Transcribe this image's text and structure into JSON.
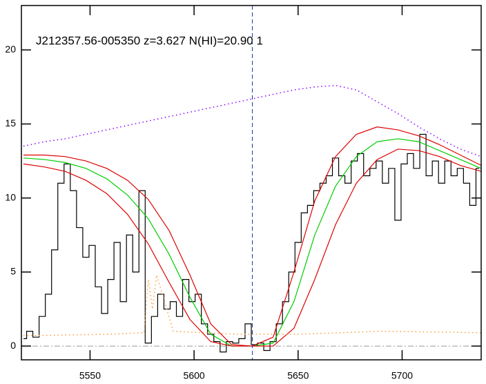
{
  "chart_data": {
    "type": "line",
    "title": "J212357.56-005350 z=3.627 N(HI)=20.90 1",
    "xlim": [
      5517,
      5738
    ],
    "ylim": [
      -0.93,
      23
    ],
    "xticks": [
      5550,
      5600,
      5650,
      5700
    ],
    "yticks": [
      0,
      5,
      10,
      15,
      20
    ],
    "zero_line": true,
    "vline": 5628,
    "series": [
      {
        "color": "#000000",
        "style": "step",
        "x": [
          5518,
          5521,
          5524,
          5527,
          5530,
          5533,
          5536,
          5539,
          5542,
          5545,
          5548,
          5551,
          5554,
          5557,
          5560,
          5563,
          5566,
          5569,
          5572,
          5575,
          5578,
          5581,
          5584,
          5587,
          5590,
          5593,
          5596,
          5599,
          5602,
          5605,
          5608,
          5611,
          5614,
          5617,
          5620,
          5623,
          5626,
          5629,
          5632,
          5635,
          5638,
          5641,
          5644,
          5647,
          5650,
          5653,
          5656,
          5659,
          5662,
          5665,
          5668,
          5671,
          5674,
          5677,
          5680,
          5683,
          5686,
          5689,
          5692,
          5695,
          5698,
          5701,
          5704,
          5707,
          5710,
          5713,
          5716,
          5719,
          5722,
          5725,
          5728,
          5731,
          5734,
          5737
        ],
        "values": [
          0.5,
          1.0,
          0.6,
          2.0,
          3.5,
          6.5,
          11.0,
          12.3,
          10.5,
          8.0,
          6.0,
          6.8,
          4.0,
          2.2,
          4.5,
          7.0,
          3.0,
          7.5,
          5.0,
          10.5,
          0.2,
          2.0,
          3.5,
          2.5,
          3.0,
          2.0,
          4.5,
          3.0,
          3.5,
          1.5,
          0.8,
          0.3,
          -0.4,
          0.3,
          0.2,
          0.5,
          1.5,
          0.1,
          0.2,
          -0.3,
          0.3,
          1.5,
          3.0,
          5.0,
          7.0,
          9.0,
          9.5,
          10.5,
          11.0,
          11.5,
          12.7,
          11.5,
          11.0,
          12.5,
          13.0,
          11.5,
          12.0,
          12.5,
          11.0,
          12.0,
          8.5,
          12.3,
          13.0,
          12.0,
          14.3,
          11.5,
          12.5,
          11.0,
          12.5,
          11.5,
          12.0,
          11.0,
          9.5,
          12.0
        ]
      },
      {
        "color": "#00cc00",
        "style": "line",
        "x": [
          5518,
          5528,
          5538,
          5548,
          5558,
          5568,
          5578,
          5588,
          5598,
          5608,
          5618,
          5628,
          5638,
          5648,
          5658,
          5668,
          5678,
          5688,
          5698,
          5708,
          5718,
          5728,
          5738
        ],
        "values": [
          12.7,
          12.6,
          12.4,
          12.0,
          11.3,
          10.2,
          8.6,
          6.2,
          3.3,
          0.8,
          0.0,
          0.0,
          0.2,
          3.0,
          7.5,
          10.8,
          12.8,
          13.8,
          14.0,
          13.8,
          13.2,
          12.6,
          12.0
        ]
      },
      {
        "color": "#dd0000",
        "style": "line",
        "x": [
          5518,
          5528,
          5538,
          5548,
          5558,
          5568,
          5578,
          5588,
          5598,
          5608,
          5618,
          5628,
          5638,
          5648,
          5658,
          5668,
          5678,
          5688,
          5698,
          5708,
          5718,
          5728,
          5738
        ],
        "values": [
          12.9,
          12.9,
          12.8,
          12.5,
          12.0,
          11.2,
          9.9,
          7.8,
          4.8,
          1.5,
          0.1,
          0.0,
          0.6,
          5.0,
          9.8,
          12.8,
          14.3,
          14.8,
          14.6,
          14.2,
          13.6,
          12.9,
          12.2
        ]
      },
      {
        "color": "#dd0000",
        "style": "line",
        "x": [
          5518,
          5528,
          5538,
          5548,
          5558,
          5568,
          5578,
          5588,
          5598,
          5608,
          5618,
          5628,
          5638,
          5648,
          5658,
          5668,
          5678,
          5688,
          5698,
          5708,
          5718,
          5728,
          5738
        ],
        "values": [
          12.3,
          12.1,
          11.8,
          11.2,
          10.3,
          8.9,
          6.9,
          4.3,
          1.8,
          0.3,
          0.0,
          0.0,
          0.0,
          1.2,
          4.5,
          8.2,
          11.0,
          12.6,
          13.3,
          13.2,
          12.8,
          12.2,
          11.8
        ]
      },
      {
        "color": "#8800ff",
        "style": "dotted",
        "x": [
          5518,
          5528,
          5538,
          5548,
          5558,
          5568,
          5578,
          5588,
          5598,
          5608,
          5618,
          5628,
          5638,
          5648,
          5658,
          5668,
          5678,
          5688,
          5698,
          5708,
          5718,
          5728,
          5738
        ],
        "values": [
          13.5,
          13.8,
          14.0,
          14.3,
          14.6,
          14.9,
          15.2,
          15.5,
          15.8,
          16.1,
          16.4,
          16.7,
          17.0,
          17.3,
          17.5,
          17.6,
          17.3,
          16.5,
          15.7,
          14.8,
          14.0,
          13.3,
          12.8
        ]
      },
      {
        "color": "#ff9933",
        "style": "dotted",
        "x": [
          5518,
          5560,
          5576,
          5578,
          5580,
          5582,
          5590,
          5620,
          5650,
          5690,
          5738
        ],
        "values": [
          0.7,
          0.8,
          0.9,
          4.5,
          2.5,
          4.8,
          1.0,
          0.8,
          0.8,
          1.0,
          0.9
        ]
      }
    ]
  }
}
